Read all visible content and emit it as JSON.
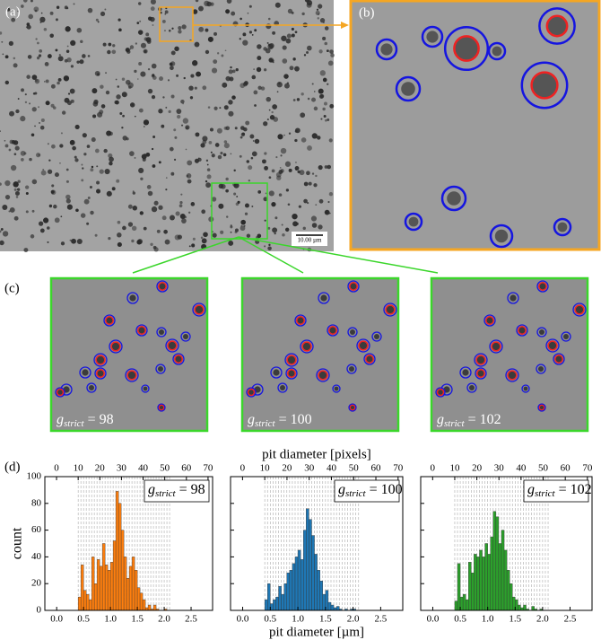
{
  "panels": {
    "a": {
      "label": "(a)",
      "scalebar": "10.00 µm"
    },
    "b": {
      "label": "(b)"
    },
    "c": {
      "label": "(c)",
      "images": [
        {
          "symbol": "g",
          "subscript": "strict",
          "text": " = 98"
        },
        {
          "symbol": "g",
          "subscript": "strict",
          "text": " = 100"
        },
        {
          "symbol": "g",
          "subscript": "strict",
          "text": " = 102"
        }
      ]
    },
    "d": {
      "label": "(d)"
    }
  },
  "chart_data": [
    {
      "type": "histogram",
      "color": "#ff7f0e",
      "ylabel": "count",
      "bins": [
        0.4,
        0.45,
        0.5,
        0.55,
        0.6,
        0.65,
        0.7,
        0.75,
        0.8,
        0.85,
        0.9,
        0.95,
        1.0,
        1.05,
        1.1,
        1.15,
        1.2,
        1.25,
        1.3,
        1.35,
        1.4,
        1.45,
        1.5,
        1.55,
        1.6,
        1.65,
        1.7,
        1.75,
        1.8,
        1.85,
        1.9,
        1.95,
        2.0,
        2.05,
        2.1
      ],
      "values": [
        10,
        34,
        15,
        12,
        8,
        40,
        20,
        38,
        33,
        50,
        34,
        30,
        36,
        52,
        89,
        80,
        60,
        40,
        24,
        33,
        40,
        30,
        17,
        13,
        8,
        2,
        4,
        1,
        4,
        1,
        0,
        0,
        1,
        0
      ],
      "xlim": [
        -0.22,
        2.9
      ],
      "xticks": [
        {
          "value": 0,
          "label": "0.0"
        },
        {
          "value": 0.5,
          "label": "0.5"
        },
        {
          "value": 1,
          "label": "1.0"
        },
        {
          "value": 1.5,
          "label": "1.5"
        },
        {
          "value": 2,
          "label": "2.0"
        },
        {
          "value": 2.5,
          "label": "2.5"
        }
      ],
      "x2lim": [
        -5.4,
        72.1
      ],
      "x2ticks": [
        0,
        10,
        20,
        30,
        40,
        50,
        60,
        70
      ],
      "ylim": [
        0,
        100
      ],
      "yticks": [
        0,
        20,
        40,
        60,
        80,
        100
      ],
      "grid": true,
      "annotation": {
        "symbol": "g",
        "subscript": "strict",
        "text": " = 98"
      }
    },
    {
      "type": "histogram",
      "color": "#1f77b4",
      "xlabel": "pit diameter [µm]",
      "x2label": "pit diameter [pixels]",
      "bins": [
        0.4,
        0.45,
        0.5,
        0.55,
        0.6,
        0.65,
        0.7,
        0.75,
        0.8,
        0.85,
        0.9,
        0.95,
        1.0,
        1.05,
        1.1,
        1.15,
        1.2,
        1.25,
        1.3,
        1.35,
        1.4,
        1.45,
        1.5,
        1.55,
        1.6,
        1.65,
        1.7,
        1.75,
        1.8,
        1.85,
        1.9,
        1.95,
        2.0,
        2.05,
        2.1
      ],
      "values": [
        8,
        20,
        5,
        8,
        10,
        18,
        12,
        20,
        28,
        30,
        35,
        40,
        45,
        38,
        60,
        76,
        68,
        56,
        42,
        30,
        22,
        12,
        15,
        6,
        4,
        2,
        3,
        1,
        0,
        1,
        0,
        1,
        1,
        0
      ],
      "xlim": [
        -0.22,
        2.9
      ],
      "xticks": [
        {
          "value": 0,
          "label": "0.0"
        },
        {
          "value": 0.5,
          "label": "0.5"
        },
        {
          "value": 1,
          "label": "1.0"
        },
        {
          "value": 1.5,
          "label": "1.5"
        },
        {
          "value": 2,
          "label": "2.0"
        },
        {
          "value": 2.5,
          "label": "2.5"
        }
      ],
      "x2lim": [
        -5.4,
        72.1
      ],
      "x2ticks": [
        0,
        10,
        20,
        30,
        40,
        50,
        60,
        70
      ],
      "ylim": [
        0,
        100
      ],
      "yticks": [
        0,
        20,
        40,
        60,
        80,
        100
      ],
      "grid": true,
      "annotation": {
        "symbol": "g",
        "subscript": "strict",
        "text": " = 100"
      }
    },
    {
      "type": "histogram",
      "color": "#2ca02c",
      "bins": [
        0.4,
        0.45,
        0.5,
        0.55,
        0.6,
        0.65,
        0.7,
        0.75,
        0.8,
        0.85,
        0.9,
        0.95,
        1.0,
        1.05,
        1.1,
        1.15,
        1.2,
        1.25,
        1.3,
        1.35,
        1.4,
        1.45,
        1.5,
        1.55,
        1.6,
        1.65,
        1.7,
        1.75,
        1.8,
        1.85,
        1.9,
        1.95,
        2.0,
        2.05,
        2.1
      ],
      "values": [
        7,
        35,
        10,
        12,
        8,
        36,
        28,
        42,
        40,
        45,
        40,
        50,
        42,
        55,
        74,
        70,
        50,
        60,
        45,
        30,
        20,
        10,
        8,
        4,
        2,
        4,
        1,
        0,
        3,
        1,
        0,
        1,
        0,
        0
      ],
      "xlim": [
        -0.22,
        2.9
      ],
      "xticks": [
        {
          "value": 0,
          "label": "0.0"
        },
        {
          "value": 0.5,
          "label": "0.5"
        },
        {
          "value": 1,
          "label": "1.0"
        },
        {
          "value": 1.5,
          "label": "1.5"
        },
        {
          "value": 2,
          "label": "2.0"
        },
        {
          "value": 2.5,
          "label": "2.5"
        }
      ],
      "x2lim": [
        -5.4,
        72.1
      ],
      "x2ticks": [
        0,
        10,
        20,
        30,
        40,
        50,
        60,
        70
      ],
      "ylim": [
        0,
        100
      ],
      "yticks": [
        0,
        20,
        40,
        60,
        80,
        100
      ],
      "grid": true,
      "annotation": {
        "symbol": "g",
        "subscript": "strict",
        "text": " = 102"
      }
    }
  ]
}
